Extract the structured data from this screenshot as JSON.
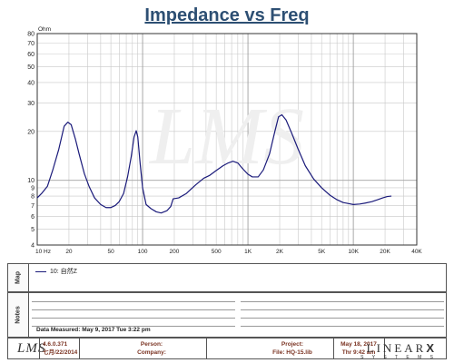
{
  "chart_data": {
    "type": "line",
    "title": "Impedance vs Freq",
    "ylabel": "Ohm",
    "x_scale": "log",
    "y_scale": "log",
    "xlim": [
      10,
      40000
    ],
    "ylim": [
      4,
      80
    ],
    "grid": true,
    "x_ticks": [
      {
        "v": 10,
        "label": "10  Hz"
      },
      {
        "v": 20,
        "label": "20"
      },
      {
        "v": 50,
        "label": "50"
      },
      {
        "v": 100,
        "label": "100"
      },
      {
        "v": 200,
        "label": "200"
      },
      {
        "v": 500,
        "label": "500"
      },
      {
        "v": 1000,
        "label": "1K"
      },
      {
        "v": 2000,
        "label": "2K"
      },
      {
        "v": 5000,
        "label": "5K"
      },
      {
        "v": 10000,
        "label": "10K"
      },
      {
        "v": 20000,
        "label": "20K"
      },
      {
        "v": 40000,
        "label": "40K"
      }
    ],
    "y_ticks": [
      {
        "v": 4,
        "label": "4"
      },
      {
        "v": 5,
        "label": "5"
      },
      {
        "v": 6,
        "label": "6"
      },
      {
        "v": 7,
        "label": "7"
      },
      {
        "v": 8,
        "label": "8"
      },
      {
        "v": 9,
        "label": "9"
      },
      {
        "v": 10,
        "label": "10"
      },
      {
        "v": 20,
        "label": "20"
      },
      {
        "v": 30,
        "label": "30"
      },
      {
        "v": 40,
        "label": "40"
      },
      {
        "v": 50,
        "label": "50"
      },
      {
        "v": 60,
        "label": "60"
      },
      {
        "v": 70,
        "label": "70"
      },
      {
        "v": 80,
        "label": "80"
      }
    ],
    "series": [
      {
        "name": "10: 自然Z",
        "color": "#1a1a7a",
        "points": [
          [
            10,
            7.8
          ],
          [
            11,
            8.3
          ],
          [
            12.5,
            9.2
          ],
          [
            14,
            11.5
          ],
          [
            16,
            15.5
          ],
          [
            18,
            21.5
          ],
          [
            19.5,
            22.8
          ],
          [
            21,
            22
          ],
          [
            23,
            18
          ],
          [
            25,
            14.5
          ],
          [
            28,
            11
          ],
          [
            31,
            9.2
          ],
          [
            35,
            7.8
          ],
          [
            40,
            7.1
          ],
          [
            45,
            6.8
          ],
          [
            50,
            6.8
          ],
          [
            55,
            7.0
          ],
          [
            60,
            7.4
          ],
          [
            66,
            8.3
          ],
          [
            72,
            10.5
          ],
          [
            78,
            14
          ],
          [
            83,
            18.5
          ],
          [
            87,
            20.2
          ],
          [
            90,
            18.5
          ],
          [
            95,
            12.5
          ],
          [
            100,
            9.0
          ],
          [
            108,
            7.1
          ],
          [
            120,
            6.7
          ],
          [
            135,
            6.4
          ],
          [
            150,
            6.3
          ],
          [
            170,
            6.5
          ],
          [
            185,
            6.9
          ],
          [
            195,
            7.7
          ],
          [
            220,
            7.8
          ],
          [
            260,
            8.3
          ],
          [
            320,
            9.4
          ],
          [
            380,
            10.3
          ],
          [
            430,
            10.7
          ],
          [
            500,
            11.5
          ],
          [
            580,
            12.3
          ],
          [
            650,
            12.8
          ],
          [
            720,
            13.1
          ],
          [
            800,
            12.8
          ],
          [
            900,
            11.7
          ],
          [
            1000,
            10.9
          ],
          [
            1100,
            10.5
          ],
          [
            1250,
            10.5
          ],
          [
            1400,
            11.6
          ],
          [
            1600,
            14.5
          ],
          [
            1800,
            20
          ],
          [
            1950,
            24.6
          ],
          [
            2100,
            25.3
          ],
          [
            2300,
            23.5
          ],
          [
            2600,
            19.5
          ],
          [
            3000,
            15.5
          ],
          [
            3500,
            12.3
          ],
          [
            4200,
            10.2
          ],
          [
            5000,
            9.0
          ],
          [
            6000,
            8.1
          ],
          [
            7000,
            7.6
          ],
          [
            8000,
            7.3
          ],
          [
            9000,
            7.2
          ],
          [
            10000,
            7.1
          ],
          [
            11500,
            7.15
          ],
          [
            13000,
            7.25
          ],
          [
            15000,
            7.4
          ],
          [
            17000,
            7.6
          ],
          [
            19000,
            7.8
          ],
          [
            21000,
            7.95
          ],
          [
            23000,
            8.0
          ]
        ]
      }
    ]
  },
  "map_panel": {
    "side_label": "Map",
    "legend_text": "10: 自然Z"
  },
  "notes_panel": {
    "side_label": "Notes",
    "measured_text": "Data Measured: May  9, 2017  Tue  3:22 pm"
  },
  "footer": {
    "logo_text": "LMS",
    "version": "4.6.0.371",
    "version_date": "七月/22/2014",
    "person_label": "Person:",
    "company_label": "Company:",
    "project_label": "Project:",
    "file_label": "File: HQ-15.lib",
    "date_line1": "May 18, 2017",
    "date_line2": "Thr  9:42 am",
    "brand_text": "LINEAR",
    "brand_x": "X",
    "brand_sub": "S Y S T E M S"
  },
  "watermark": "LMS"
}
